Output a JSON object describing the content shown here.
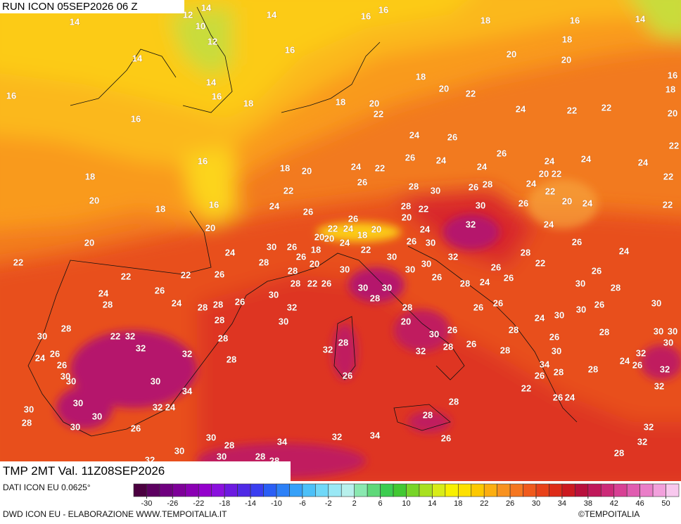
{
  "header": {
    "run": "RUN ICON 05SEP2026 06 Z"
  },
  "map": {
    "field": "TMP 2MT Val. 11Z08SEP2026",
    "labels": [
      14,
      12,
      10,
      12,
      14,
      14,
      16,
      16,
      18,
      16,
      14,
      16,
      14,
      14,
      16,
      16,
      16,
      18,
      18,
      20,
      22,
      18,
      20,
      22,
      20,
      20,
      18,
      16,
      18,
      20,
      24,
      22,
      22,
      22,
      16,
      18,
      20,
      18,
      20,
      18,
      16,
      22,
      24,
      24,
      22,
      24,
      26,
      26,
      24,
      24,
      26,
      24,
      24,
      24,
      22,
      22,
      26,
      28,
      30,
      26,
      28,
      24,
      20,
      22,
      22,
      20,
      24,
      26,
      26,
      28,
      22,
      30,
      26,
      20,
      20,
      24,
      30,
      26,
      20,
      22,
      24,
      20,
      18,
      20,
      18,
      24,
      22,
      24,
      32,
      24,
      26,
      30,
      20,
      22,
      28,
      26,
      20,
      30,
      32,
      28,
      26,
      24,
      22,
      22,
      26,
      28,
      22,
      26,
      30,
      28,
      30,
      30,
      26,
      22,
      26,
      24,
      28,
      26,
      24,
      28,
      28,
      26,
      30,
      32,
      30,
      30,
      28,
      26,
      28,
      24,
      26,
      30,
      28,
      30,
      28,
      26,
      26,
      24,
      30,
      26,
      30,
      28,
      30,
      20,
      22,
      32,
      28,
      30,
      32,
      28,
      32,
      26,
      24,
      26,
      30,
      28,
      32,
      30,
      26,
      28,
      26,
      28,
      30,
      30,
      32,
      28,
      26,
      28,
      30,
      32,
      30,
      28,
      24,
      26,
      32,
      34,
      30,
      30,
      26,
      26,
      28,
      28,
      34,
      22,
      32,
      30,
      30,
      32,
      24,
      26,
      24,
      28,
      30,
      30,
      26,
      28,
      28,
      26,
      32,
      32,
      28,
      30,
      28,
      34,
      34,
      32,
      30,
      32,
      30,
      28,
      28
    ]
  },
  "colorbar": {
    "range": [
      -32,
      52
    ],
    "ticks": [
      -30,
      -26,
      -22,
      -18,
      -14,
      -10,
      -6,
      -2,
      2,
      6,
      10,
      14,
      18,
      22,
      26,
      30,
      34,
      38,
      42,
      46,
      50
    ],
    "colors": [
      "#4b0040",
      "#5c0060",
      "#6f007f",
      "#7e0099",
      "#8a00b3",
      "#9400cc",
      "#8a10dd",
      "#6c1ae0",
      "#4f2ae6",
      "#3a3ef0",
      "#2a5ef5",
      "#2c80f7",
      "#36a0f8",
      "#4cc0f8",
      "#70d8f8",
      "#9ae8f5",
      "#b8f0ec",
      "#8ae8b0",
      "#5fd87a",
      "#3ccc50",
      "#42c832",
      "#78d428",
      "#a8e020",
      "#d8ec18",
      "#f8f000",
      "#fde000",
      "#fdc800",
      "#fcae10",
      "#f89220",
      "#f57620",
      "#f05a1c",
      "#e8421a",
      "#de2c18",
      "#cc1a20",
      "#b8103c",
      "#c0185a",
      "#cc2a78",
      "#d84094",
      "#e05cb0",
      "#ea7ec8",
      "#f2a0dc",
      "#f8c8ee"
    ]
  },
  "footer": {
    "source": "DATI ICON EU 0.0625°",
    "credit": "DWD ICON EU - ELABORAZIONE WWW.TEMPOITALIA.IT",
    "copyright": "©TEMPOITALIA"
  }
}
